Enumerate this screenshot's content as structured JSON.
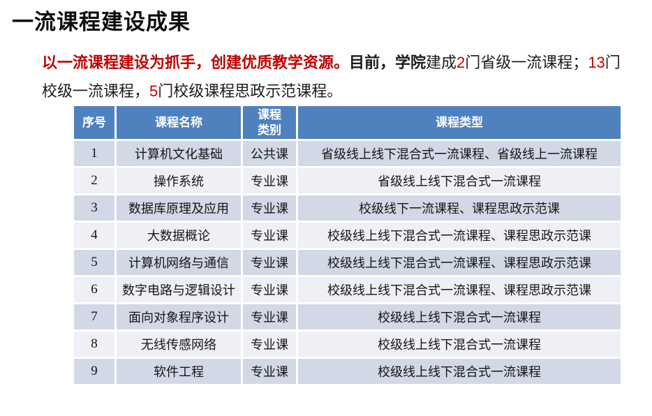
{
  "slide": {
    "title": "一流课程建设成果",
    "intro": {
      "line1": [
        {
          "text": "以一流课程建设为抓手，创建优质教学资源。"
        },
        {
          "text": "目前，学院"
        },
        {
          "text": "建成"
        },
        {
          "text": "2"
        },
        {
          "text": "门省级一流课程；"
        },
        {
          "text": "13"
        },
        {
          "text": "门"
        }
      ],
      "line2": [
        {
          "text": "校级一流课程，"
        },
        {
          "text": "5"
        },
        {
          "text": "门校级课程思政示范课程。"
        }
      ]
    },
    "table": {
      "headers": [
        "序号",
        "课程名称",
        "课程类别",
        "课程类型"
      ],
      "rows": [
        {
          "no": "1",
          "name": "计算机文化基础",
          "category": "公共课",
          "type": "省级线上线下混合式一流课程、省级线上一流课程"
        },
        {
          "no": "2",
          "name": "操作系统",
          "category": "专业课",
          "type": "省级线上线下混合式一流课程"
        },
        {
          "no": "3",
          "name": "数据库原理及应用",
          "category": "专业课",
          "type": "校级线下一流课程、课程思政示范课"
        },
        {
          "no": "4",
          "name": "大数据概论",
          "category": "专业课",
          "type": "校级线上线下混合式一流课程、课程思政示范课"
        },
        {
          "no": "5",
          "name": "计算机网络与通信",
          "category": "专业课",
          "type": "校级线上线下混合式一流课程、课程思政示范课"
        },
        {
          "no": "6",
          "name": "数字电路与逻辑设计",
          "category": "专业课",
          "type": "校级线上线下混合式一流课程、课程思政示范课"
        },
        {
          "no": "7",
          "name": "面向对象程序设计",
          "category": "专业课",
          "type": "校级线上线下混合式一流课程"
        },
        {
          "no": "8",
          "name": "无线传感网络",
          "category": "专业课",
          "type": "校级线上线下混合式一流课程"
        },
        {
          "no": "9",
          "name": "软件工程",
          "category": "专业课",
          "type": "校级线上线下混合式一流课程"
        }
      ]
    },
    "colors": {
      "accent_red": "#C00000",
      "header_blue": "#4E81BD",
      "row_band_dark": "#D2D8E6",
      "row_band_light": "#EEF0F6"
    }
  }
}
